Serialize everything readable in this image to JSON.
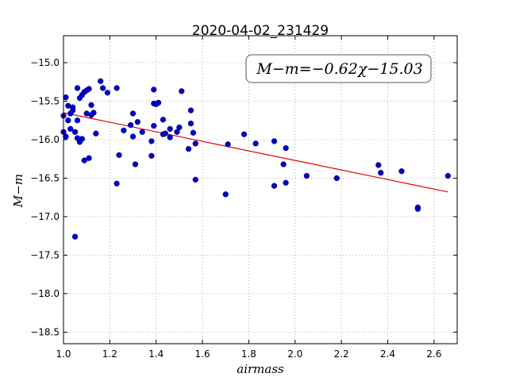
{
  "chart_data": {
    "type": "scatter",
    "title": "2020-04-02_231429",
    "xlabel": "airmass",
    "ylabel": "M−m",
    "annotation": "M−m=−0.62χ−15.03",
    "xlim": [
      1.0,
      2.7
    ],
    "ylim": [
      -18.65,
      -14.65
    ],
    "y_inverted": true,
    "grid": true,
    "xticks": [
      1.0,
      1.2,
      1.4,
      1.6,
      1.8,
      2.0,
      2.2,
      2.4,
      2.6
    ],
    "xtick_labels": [
      "1.0",
      "1.2",
      "1.4",
      "1.6",
      "1.8",
      "2.0",
      "2.2",
      "2.4",
      "2.6"
    ],
    "yticks": [
      -15.0,
      -15.5,
      -16.0,
      -16.5,
      -17.0,
      -17.5,
      -18.0,
      -18.5
    ],
    "ytick_labels": [
      "−15.0",
      "−15.5",
      "−16.0",
      "−16.5",
      "−17.0",
      "−17.5",
      "−18.0",
      "−18.5"
    ],
    "colors": {
      "points": "#0000cc",
      "fit": "#dd0000"
    },
    "fit": {
      "slope": -0.62,
      "intercept": -15.03,
      "x_range": [
        1.0,
        2.66
      ]
    },
    "points": [
      [
        1.0,
        -15.69
      ],
      [
        1.0,
        -15.9
      ],
      [
        1.01,
        -15.96
      ],
      [
        1.01,
        -15.45
      ],
      [
        1.02,
        -15.56
      ],
      [
        1.02,
        -15.75
      ],
      [
        1.03,
        -15.86
      ],
      [
        1.03,
        -15.66
      ],
      [
        1.04,
        -15.58
      ],
      [
        1.04,
        -15.62
      ],
      [
        1.05,
        -15.9
      ],
      [
        1.05,
        -17.26
      ],
      [
        1.06,
        -15.75
      ],
      [
        1.06,
        -15.98
      ],
      [
        1.06,
        -15.33
      ],
      [
        1.07,
        -15.46
      ],
      [
        1.07,
        -16.03
      ],
      [
        1.08,
        -15.42
      ],
      [
        1.08,
        -15.99
      ],
      [
        1.09,
        -16.27
      ],
      [
        1.09,
        -15.38
      ],
      [
        1.1,
        -15.66
      ],
      [
        1.1,
        -15.36
      ],
      [
        1.11,
        -16.24
      ],
      [
        1.11,
        -15.34
      ],
      [
        1.12,
        -15.68
      ],
      [
        1.12,
        -15.55
      ],
      [
        1.13,
        -15.65
      ],
      [
        1.14,
        -15.92
      ],
      [
        1.16,
        -15.24
      ],
      [
        1.17,
        -15.33
      ],
      [
        1.19,
        -15.39
      ],
      [
        1.23,
        -15.33
      ],
      [
        1.23,
        -16.57
      ],
      [
        1.24,
        -16.2
      ],
      [
        1.26,
        -15.88
      ],
      [
        1.29,
        -15.81
      ],
      [
        1.3,
        -15.66
      ],
      [
        1.3,
        -15.96
      ],
      [
        1.31,
        -16.32
      ],
      [
        1.32,
        -15.77
      ],
      [
        1.34,
        -15.9
      ],
      [
        1.38,
        -16.02
      ],
      [
        1.38,
        -16.21
      ],
      [
        1.39,
        -15.82
      ],
      [
        1.39,
        -15.35
      ],
      [
        1.39,
        -15.53
      ],
      [
        1.4,
        -15.54
      ],
      [
        1.41,
        -15.52
      ],
      [
        1.43,
        -15.93
      ],
      [
        1.43,
        -15.74
      ],
      [
        1.44,
        -15.92
      ],
      [
        1.46,
        -15.97
      ],
      [
        1.46,
        -15.86
      ],
      [
        1.49,
        -15.9
      ],
      [
        1.5,
        -15.84
      ],
      [
        1.51,
        -15.37
      ],
      [
        1.54,
        -16.12
      ],
      [
        1.55,
        -15.79
      ],
      [
        1.55,
        -15.62
      ],
      [
        1.56,
        -15.91
      ],
      [
        1.57,
        -16.05
      ],
      [
        1.57,
        -16.52
      ],
      [
        1.7,
        -16.71
      ],
      [
        1.71,
        -16.06
      ],
      [
        1.78,
        -15.93
      ],
      [
        1.83,
        -16.05
      ],
      [
        1.91,
        -16.6
      ],
      [
        1.91,
        -16.02
      ],
      [
        1.95,
        -16.32
      ],
      [
        1.96,
        -16.56
      ],
      [
        1.96,
        -16.11
      ],
      [
        2.05,
        -16.47
      ],
      [
        2.18,
        -16.5
      ],
      [
        2.36,
        -16.33
      ],
      [
        2.37,
        -16.43
      ],
      [
        2.46,
        -16.41
      ],
      [
        2.53,
        -16.88
      ],
      [
        2.53,
        -16.9
      ],
      [
        2.66,
        -16.47
      ]
    ]
  }
}
